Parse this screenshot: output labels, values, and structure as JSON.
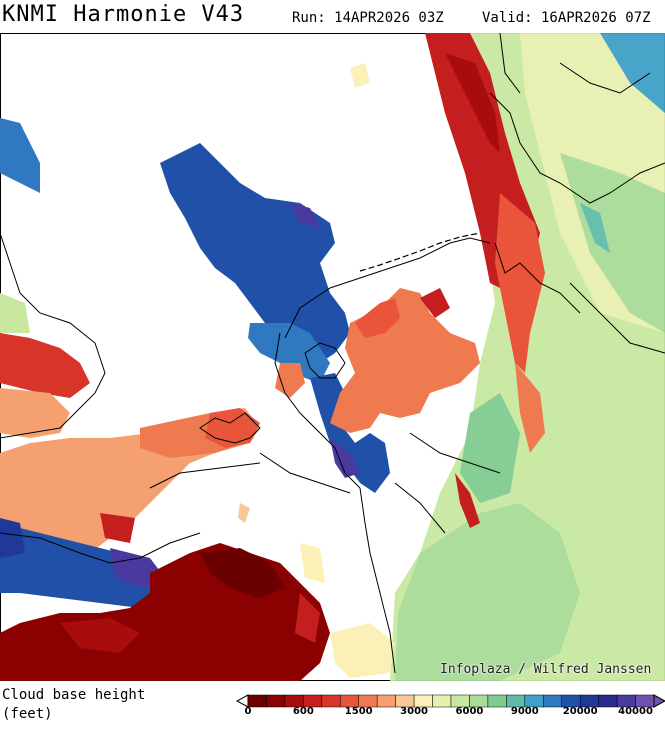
{
  "header": {
    "title": "KNMI Harmonie V43",
    "run": "Run: 14APR2026 03Z",
    "valid": "Valid: 16APR2026 07Z"
  },
  "map": {
    "credit": "Infoplaza / Wilfred Janssen",
    "variable": "Cloud base height",
    "background_color": "#ffffff",
    "border_color": "#000000"
  },
  "legend": {
    "title_line1": "Cloud base height",
    "title_line2": "(feet)",
    "colors": [
      "#6b0000",
      "#8b0000",
      "#a80c0c",
      "#c41e1e",
      "#d8352a",
      "#e8553a",
      "#f07a50",
      "#f5a070",
      "#f8c898",
      "#faf0b8",
      "#e8f0b0",
      "#c8e8a0",
      "#a8dc98",
      "#80cc90",
      "#60bca8",
      "#40a0c8",
      "#3078c0",
      "#2050a8",
      "#203898",
      "#2a2a90",
      "#4a3aa0",
      "#7050b0"
    ],
    "ticks": [
      "0",
      "600",
      "1500",
      "3000",
      "6000",
      "9000",
      "20000",
      "40000"
    ]
  }
}
